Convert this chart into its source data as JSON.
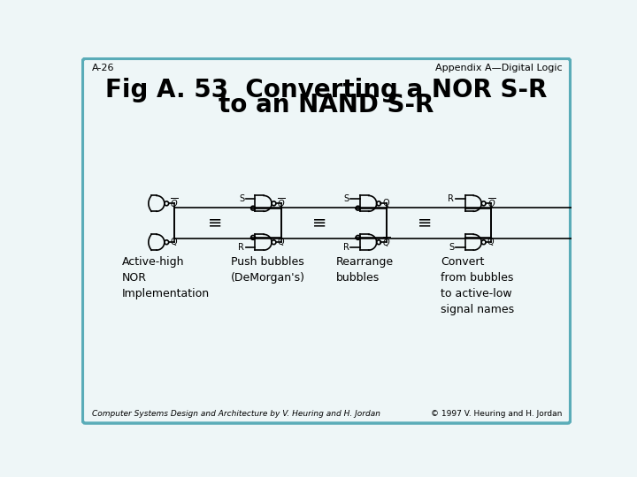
{
  "bg_color": "#eef6f7",
  "border_color": "#5aacb8",
  "title_line1": "Fig A. 53  Converting a NOR S-R",
  "title_line2": "to an NAND S-R",
  "header_left": "A-26",
  "header_right": "Appendix A—Digital Logic",
  "footer_left": "Computer Systems Design and Architecture by V. Heuring and H. Jordan",
  "footer_right": "© 1997 V. Heuring and H. Jordan",
  "labels": [
    "Active-high\nNOR\nImplementation",
    "Push bubbles\n(DeMorgan's)",
    "Rearrange\nbubbles",
    "Convert\nfrom bubbles\nto active-low\nsignal names"
  ],
  "equiv_sign": "≡",
  "title_fontsize": 20,
  "header_fontsize": 8,
  "footer_fontsize": 6.5,
  "label_fontsize": 9,
  "gate_color": "black",
  "lw": 1.2
}
